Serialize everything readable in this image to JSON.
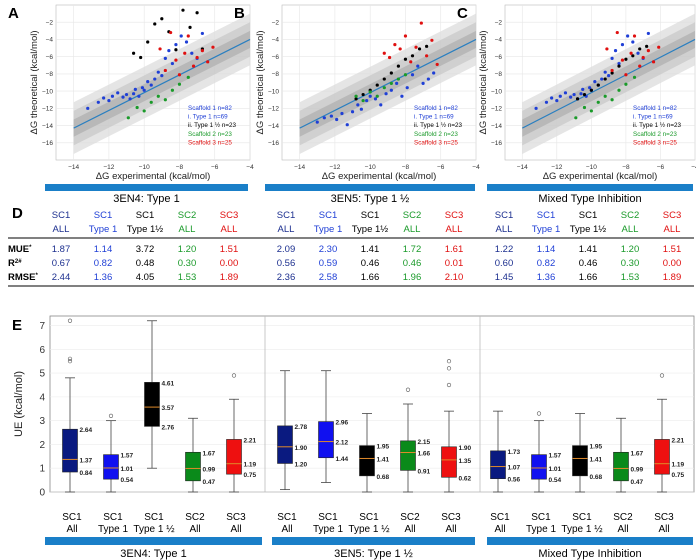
{
  "chart_data": [
    {
      "type": "scatter",
      "panel_label": "A",
      "title": "3EN4: Type 1",
      "xlabel": "ΔG experimental (kcal/mol)",
      "ylabel": "ΔG theoretical (kcal/mol)",
      "xlim": [
        -15,
        -4
      ],
      "ylim": [
        -18,
        0
      ],
      "xticks": [
        -14,
        -12,
        -10,
        -8,
        -6,
        -4
      ],
      "yticks": [
        -16,
        -14,
        -12,
        -10,
        -8,
        -6,
        -4,
        -2
      ],
      "fit_line": {
        "x": [
          -14,
          -4
        ],
        "y": [
          -14.3,
          -4.0
        ]
      },
      "legend": [
        "Scaffold 1 n=82",
        "i.  Type 1 n=69",
        "ii.  Type 1 ½ n=23",
        "Scaffold 2 n=23",
        "Scaffold 3 n=25"
      ],
      "legend_colors": [
        "#1f3fd6",
        "#1f3fd6",
        "#000000",
        "#1a9a2a",
        "#e01010"
      ],
      "series": [
        {
          "name": "Scaffold 1 Type 1",
          "color": "#1f3fd6",
          "x": [
            -13.2,
            -12.6,
            -12.3,
            -12.0,
            -11.8,
            -11.5,
            -11.2,
            -11.0,
            -10.8,
            -10.6,
            -10.5,
            -10.3,
            -10.1,
            -10.0,
            -9.8,
            -9.6,
            -9.4,
            -9.2,
            -9.0,
            -8.8,
            -8.6,
            -8.4,
            -8.2,
            -7.9,
            -7.6,
            -7.3,
            -7.0,
            -6.7
          ],
          "y": [
            -12.0,
            -11.3,
            -10.8,
            -11.1,
            -10.6,
            -10.2,
            -10.7,
            -10.4,
            -10.9,
            -10.3,
            -9.8,
            -10.6,
            -9.6,
            -9.9,
            -8.9,
            -9.3,
            -8.6,
            -7.8,
            -8.2,
            -6.2,
            -5.3,
            -6.8,
            -4.6,
            -3.6,
            -4.3,
            -5.6,
            -6.2,
            -3.3
          ]
        },
        {
          "name": "Scaffold 1 Type 1 ½",
          "color": "#000000",
          "x": [
            -10.6,
            -10.2,
            -9.8,
            -9.4,
            -9.0,
            -8.6,
            -8.2,
            -7.8,
            -7.4,
            -7.0,
            -6.7
          ],
          "y": [
            -5.6,
            -6.1,
            -4.3,
            -2.2,
            -1.6,
            -3.1,
            -5.2,
            -0.6,
            -2.6,
            -0.9,
            -5.1
          ]
        },
        {
          "name": "Scaffold 2",
          "color": "#1a9a2a",
          "x": [
            -10.9,
            -10.4,
            -10.0,
            -9.6,
            -9.2,
            -8.8,
            -8.4,
            -8.0,
            -7.5
          ],
          "y": [
            -13.1,
            -11.9,
            -12.3,
            -11.3,
            -10.6,
            -11.0,
            -9.9,
            -9.2,
            -8.4
          ]
        },
        {
          "name": "Scaffold 3",
          "color": "#e01010",
          "x": [
            -9.1,
            -8.8,
            -8.5,
            -8.2,
            -8.0,
            -7.7,
            -7.5,
            -7.2,
            -7.0,
            -6.7,
            -6.4,
            -6.1
          ],
          "y": [
            -5.1,
            -7.6,
            -3.2,
            -6.4,
            -8.1,
            -5.6,
            -3.6,
            -7.1,
            -6.1,
            -5.3,
            -6.6,
            -4.9
          ]
        }
      ]
    },
    {
      "type": "scatter",
      "panel_label": "B",
      "title": "3EN5: Type 1 ½",
      "xlabel": "ΔG experimental (kcal/mol)",
      "ylabel": "ΔG theoretical (kcal/mol)",
      "xlim": [
        -15,
        -4
      ],
      "ylim": [
        -18,
        0
      ],
      "xticks": [
        -14,
        -12,
        -10,
        -8,
        -6,
        -4
      ],
      "yticks": [
        -16,
        -14,
        -12,
        -10,
        -8,
        -6,
        -4,
        -2
      ],
      "fit_line": {
        "x": [
          -14,
          -4
        ],
        "y": [
          -14.3,
          -4.0
        ]
      },
      "legend": [
        "Scaffold 1 n=82",
        "i.  Type 1 n=69",
        "ii.  Type 1 ½ n=23",
        "Scaffold 2 n=23",
        "Scaffold 3 n=25"
      ],
      "legend_colors": [
        "#1f3fd6",
        "#1f3fd6",
        "#000000",
        "#1a9a2a",
        "#e01010"
      ],
      "series": [
        {
          "name": "Scaffold 1 Type 1",
          "color": "#1f3fd6",
          "x": [
            -13.0,
            -12.6,
            -12.2,
            -11.9,
            -11.6,
            -11.3,
            -11.0,
            -10.7,
            -10.5,
            -10.2,
            -10.0,
            -9.7,
            -9.4,
            -9.1,
            -8.8,
            -8.5,
            -8.2,
            -7.9,
            -7.6,
            -7.3,
            -7.0,
            -6.7,
            -6.4
          ],
          "y": [
            -13.6,
            -13.1,
            -12.9,
            -13.3,
            -12.6,
            -13.9,
            -12.4,
            -11.6,
            -12.1,
            -11.1,
            -10.6,
            -10.9,
            -11.6,
            -10.3,
            -9.9,
            -9.1,
            -10.6,
            -9.6,
            -8.1,
            -7.1,
            -9.1,
            -8.6,
            -7.9
          ]
        },
        {
          "name": "Scaffold 1 Type 1 ½",
          "color": "#000000",
          "x": [
            -10.8,
            -10.4,
            -10.0,
            -9.6,
            -9.2,
            -8.8,
            -8.4,
            -8.0,
            -7.6,
            -7.2,
            -6.8
          ],
          "y": [
            -10.9,
            -10.4,
            -9.9,
            -9.3,
            -8.6,
            -7.9,
            -7.1,
            -6.3,
            -5.9,
            -5.1,
            -4.8
          ]
        },
        {
          "name": "Scaffold 2",
          "color": "#1a9a2a",
          "x": [
            -10.8,
            -10.4,
            -10.0,
            -9.6,
            -9.2,
            -8.8,
            -8.4,
            -8.0
          ],
          "y": [
            -10.6,
            -11.1,
            -10.1,
            -10.6,
            -9.6,
            -9.1,
            -8.6,
            -8.1
          ]
        },
        {
          "name": "Scaffold 3",
          "color": "#e01010",
          "x": [
            -9.2,
            -8.9,
            -8.6,
            -8.3,
            -8.0,
            -7.7,
            -7.4,
            -7.1,
            -6.8,
            -6.5,
            -6.2
          ],
          "y": [
            -5.6,
            -6.1,
            -4.6,
            -5.1,
            -3.6,
            -6.6,
            -4.9,
            -2.1,
            -5.9,
            -4.1,
            -6.9
          ]
        }
      ]
    },
    {
      "type": "scatter",
      "panel_label": "C",
      "title": "Mixed Type Inhibition",
      "xlabel": "ΔG experimental (kcal/mol)",
      "ylabel": "ΔG theoretical (kcal/mol)",
      "xlim": [
        -15,
        -4
      ],
      "ylim": [
        -18,
        0
      ],
      "xticks": [
        -14,
        -12,
        -10,
        -8,
        -6,
        -4
      ],
      "yticks": [
        -16,
        -14,
        -12,
        -10,
        -8,
        -6,
        -4,
        -2
      ],
      "fit_line": {
        "x": [
          -14,
          -4
        ],
        "y": [
          -14.3,
          -4.0
        ]
      },
      "legend": [
        "Scaffold 1 n=82",
        "i.  Type 1 n=69",
        "ii.  Type 1 ½ n=23",
        "Scaffold 2 n=23",
        "Scaffold 3 n=25"
      ],
      "legend_colors": [
        "#1f3fd6",
        "#1f3fd6",
        "#000000",
        "#1a9a2a",
        "#e01010"
      ],
      "series": [
        {
          "name": "Scaffold 1 Type 1",
          "color": "#1f3fd6",
          "x": [
            -13.2,
            -12.6,
            -12.3,
            -12.0,
            -11.8,
            -11.5,
            -11.2,
            -11.0,
            -10.8,
            -10.6,
            -10.5,
            -10.3,
            -10.1,
            -10.0,
            -9.8,
            -9.6,
            -9.4,
            -9.2,
            -9.0,
            -8.8,
            -8.6,
            -8.4,
            -8.2,
            -7.9,
            -7.6,
            -7.3,
            -7.0,
            -6.7
          ],
          "y": [
            -12.0,
            -11.3,
            -10.8,
            -11.1,
            -10.6,
            -10.2,
            -10.7,
            -10.4,
            -10.9,
            -10.3,
            -9.8,
            -10.6,
            -9.6,
            -9.9,
            -8.9,
            -9.3,
            -8.6,
            -7.8,
            -8.2,
            -6.2,
            -5.3,
            -6.8,
            -4.6,
            -3.6,
            -4.3,
            -5.6,
            -6.2,
            -3.3
          ]
        },
        {
          "name": "Scaffold 1 Type 1 ½",
          "color": "#000000",
          "x": [
            -10.8,
            -10.4,
            -10.0,
            -9.6,
            -9.2,
            -8.8,
            -8.4,
            -8.0,
            -7.6,
            -7.2,
            -6.8
          ],
          "y": [
            -10.9,
            -10.4,
            -9.9,
            -9.3,
            -8.6,
            -7.9,
            -7.1,
            -6.3,
            -5.9,
            -5.1,
            -4.8
          ]
        },
        {
          "name": "Scaffold 2",
          "color": "#1a9a2a",
          "x": [
            -10.9,
            -10.4,
            -10.0,
            -9.6,
            -9.2,
            -8.8,
            -8.4,
            -8.0,
            -7.5
          ],
          "y": [
            -13.1,
            -11.9,
            -12.3,
            -11.3,
            -10.6,
            -11.0,
            -9.9,
            -9.2,
            -8.4
          ]
        },
        {
          "name": "Scaffold 3",
          "color": "#e01010",
          "x": [
            -9.1,
            -8.8,
            -8.5,
            -8.2,
            -8.0,
            -7.7,
            -7.5,
            -7.2,
            -7.0,
            -6.7,
            -6.4,
            -6.1
          ],
          "y": [
            -5.1,
            -7.6,
            -3.2,
            -6.4,
            -8.1,
            -5.6,
            -3.6,
            -7.1,
            -6.1,
            -5.3,
            -6.6,
            -4.9
          ]
        }
      ]
    },
    {
      "type": "table",
      "panel_label": "D",
      "groups": [
        "3EN4: Type 1",
        "3EN5: Type 1 ½",
        "Mixed Type Inhibition"
      ],
      "columns": [
        {
          "top": "SC1",
          "bottom": "ALL",
          "color": "#1c2f8f"
        },
        {
          "top": "SC1",
          "bottom": "Type 1",
          "color": "#1f3fd6"
        },
        {
          "top": "SC1",
          "bottom": "Type 1½",
          "color": "#000000"
        },
        {
          "top": "SC2",
          "bottom": "ALL",
          "color": "#1a9a2a"
        },
        {
          "top": "SC3",
          "bottom": "ALL",
          "color": "#e01010"
        }
      ],
      "row_labels": [
        "MUE",
        "R",
        "RMSE"
      ],
      "row_label_marks": [
        "*",
        "2#",
        "*"
      ],
      "rows": [
        [
          [
            "1.87",
            "1.14",
            "3.72",
            "1.20",
            "1.51"
          ],
          [
            "2.09",
            "2.30",
            "1.41",
            "1.72",
            "1.61"
          ],
          [
            "1.22",
            "1.14",
            "1.41",
            "1.20",
            "1.51"
          ]
        ],
        [
          [
            "0.67",
            "0.82",
            "0.48",
            "0.30",
            "0.00"
          ],
          [
            "0.56",
            "0.59",
            "0.46",
            "0.46",
            "0.01"
          ],
          [
            "0.60",
            "0.82",
            "0.46",
            "0.30",
            "0.00"
          ]
        ],
        [
          [
            "2.44",
            "1.36",
            "4.05",
            "1.53",
            "1.89"
          ],
          [
            "2.36",
            "2.58",
            "1.66",
            "1.96",
            "2.10"
          ],
          [
            "1.45",
            "1.36",
            "1.66",
            "1.53",
            "1.89"
          ]
        ]
      ]
    },
    {
      "type": "box",
      "panel_label": "E",
      "ylabel": "UE (kcal/mol)",
      "ylim": [
        0,
        7.4
      ],
      "yticks": [
        0,
        1,
        2,
        3,
        4,
        5,
        6,
        7
      ],
      "groups": [
        "3EN4: Type 1",
        "3EN5: Type 1 ½",
        "Mixed Type Inhibition"
      ],
      "category_top": [
        "SC1",
        "SC1",
        "SC1",
        "SC2",
        "SC3"
      ],
      "category_bottom": [
        "All",
        "Type 1",
        "Type 1 ½",
        "All",
        "All"
      ],
      "colors": [
        "#0a1a80",
        "#1010f0",
        "#000000",
        "#0a8a1a",
        "#ee1010"
      ],
      "boxes": [
        [
          {
            "q1": 0.84,
            "median": 1.37,
            "q3": 2.64,
            "min": 0.0,
            "max": 4.8,
            "outliers": [
              5.6,
              5.5,
              7.2
            ]
          },
          {
            "q1": 0.54,
            "median": 1.01,
            "q3": 1.57,
            "min": 0.0,
            "max": 3.0,
            "outliers": [
              3.2
            ]
          },
          {
            "q1": 2.76,
            "median": 3.57,
            "q3": 4.61,
            "min": 1.0,
            "max": 7.2,
            "outliers": []
          },
          {
            "q1": 0.47,
            "median": 0.99,
            "q3": 1.67,
            "min": 0.0,
            "max": 3.1,
            "outliers": []
          },
          {
            "q1": 0.75,
            "median": 1.19,
            "q3": 2.21,
            "min": 0.0,
            "max": 3.9,
            "outliers": [
              4.9
            ]
          }
        ],
        [
          {
            "q1": 1.2,
            "median": 1.9,
            "q3": 2.78,
            "min": 0.1,
            "max": 5.1,
            "outliers": []
          },
          {
            "q1": 1.44,
            "median": 2.12,
            "q3": 2.96,
            "min": 0.4,
            "max": 5.1,
            "outliers": []
          },
          {
            "q1": 0.68,
            "median": 1.41,
            "q3": 1.95,
            "min": 0.0,
            "max": 3.3,
            "outliers": []
          },
          {
            "q1": 0.91,
            "median": 1.66,
            "q3": 2.15,
            "min": 0.0,
            "max": 3.7,
            "outliers": [
              4.3
            ]
          },
          {
            "q1": 0.62,
            "median": 1.35,
            "q3": 1.9,
            "min": 0.0,
            "max": 3.4,
            "outliers": [
              4.5,
              5.2,
              5.5
            ]
          }
        ],
        [
          {
            "q1": 0.56,
            "median": 1.07,
            "q3": 1.73,
            "min": 0.0,
            "max": 3.4,
            "outliers": []
          },
          {
            "q1": 0.54,
            "median": 1.01,
            "q3": 1.57,
            "min": 0.0,
            "max": 3.0,
            "outliers": [
              3.3
            ]
          },
          {
            "q1": 0.68,
            "median": 1.41,
            "q3": 1.95,
            "min": 0.0,
            "max": 3.3,
            "outliers": []
          },
          {
            "q1": 0.47,
            "median": 0.99,
            "q3": 1.67,
            "min": 0.0,
            "max": 3.1,
            "outliers": []
          },
          {
            "q1": 0.75,
            "median": 1.19,
            "q3": 2.21,
            "min": 0.0,
            "max": 3.9,
            "outliers": [
              4.9
            ]
          }
        ]
      ]
    }
  ]
}
